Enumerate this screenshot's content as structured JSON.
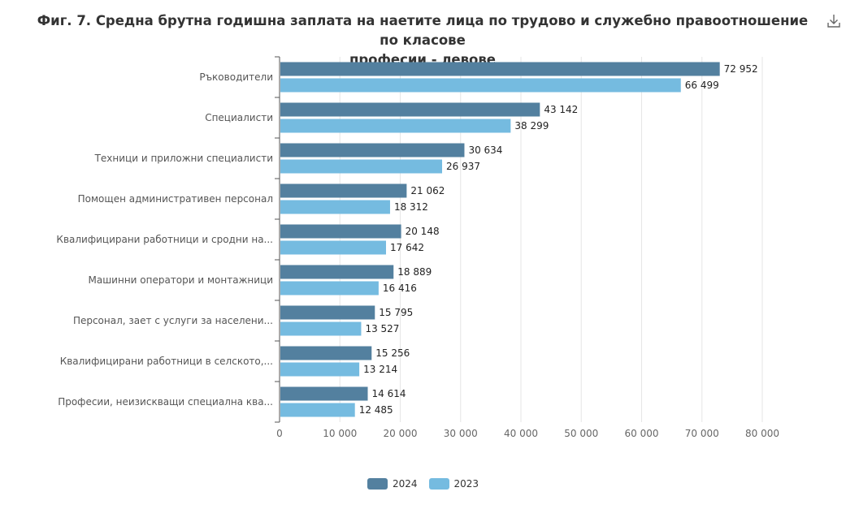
{
  "chart_data": {
    "type": "bar",
    "orientation": "horizontal",
    "title": "Фиг. 7. Средна брутна годишна заплата на наетите лица по трудово и служебно правоотношение по класове професии - левове",
    "title_lines": [
      "Фиг. 7. Средна брутна годишна заплата на наетите лица по трудово и служебно правоотношение по класове",
      "професии - левове"
    ],
    "categories": [
      "Ръководители",
      "Специалисти",
      "Техници и приложни специалисти",
      "Помощен административен персонал",
      "Квалифицирани работници и сродни на...",
      "Машинни оператори и монтажници",
      "Персонал, зает с услуги за населени...",
      "Квалифицирани работници в селското,...",
      "Професии, неизискващи специална ква..."
    ],
    "series": [
      {
        "name": "2024",
        "color": "#53809f",
        "values": [
          72952,
          43142,
          30634,
          21062,
          20148,
          18889,
          15795,
          15256,
          14614
        ],
        "labels": [
          "72 952",
          "43 142",
          "30 634",
          "21 062",
          "20 148",
          "18 889",
          "15 795",
          "15 256",
          "14 614"
        ]
      },
      {
        "name": "2023",
        "color": "#75bbe0",
        "values": [
          66499,
          38299,
          26937,
          18312,
          17642,
          16416,
          13527,
          13214,
          12485
        ],
        "labels": [
          "66 499",
          "38 299",
          "26 937",
          "18 312",
          "17 642",
          "16 416",
          "13 527",
          "13 214",
          "12 485"
        ]
      }
    ],
    "xlim": [
      0,
      80000
    ],
    "ticks": [
      0,
      10000,
      20000,
      30000,
      40000,
      50000,
      60000,
      70000,
      80000
    ],
    "tick_labels": [
      "0",
      "10 000",
      "20 000",
      "30 000",
      "40 000",
      "50 000",
      "60 000",
      "70 000",
      "80 000"
    ],
    "grid": true,
    "legend_position": "bottom-center"
  },
  "icons": {
    "download": "download-icon"
  }
}
